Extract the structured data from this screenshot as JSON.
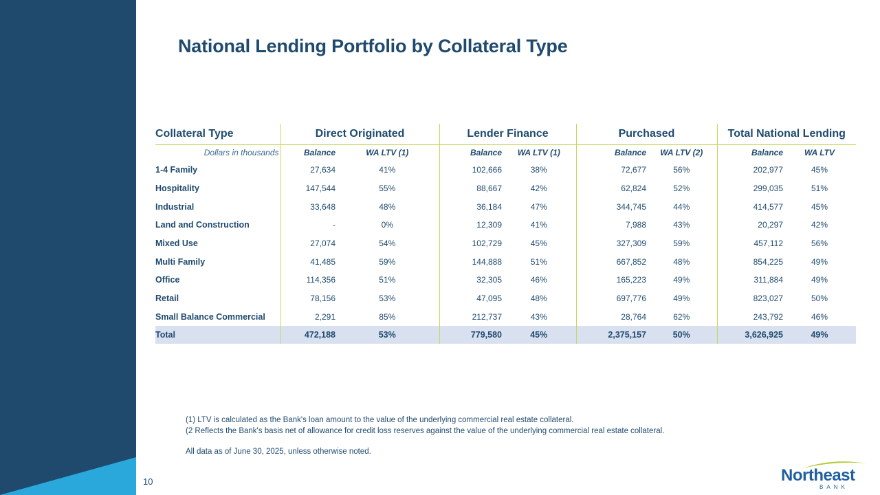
{
  "title": "National Lending Portfolio by Collateral Type",
  "table": {
    "groups": [
      "Collateral Type",
      "Direct Originated",
      "Lender Finance",
      "Purchased",
      "Total National Lending"
    ],
    "units_note": "Dollars in thousands",
    "subheaders": [
      "Balance",
      "WA LTV (1)",
      "Balance",
      "WA LTV (1)",
      "Balance",
      "WA LTV (2)",
      "Balance",
      "WA LTV"
    ],
    "rows": [
      {
        "label": "1-4 Family",
        "cells": [
          "27,634",
          "41%",
          "102,666",
          "38%",
          "72,677",
          "56%",
          "202,977",
          "45%"
        ]
      },
      {
        "label": "Hospitality",
        "cells": [
          "147,544",
          "55%",
          "88,667",
          "42%",
          "62,824",
          "52%",
          "299,035",
          "51%"
        ]
      },
      {
        "label": "Industrial",
        "cells": [
          "33,648",
          "48%",
          "36,184",
          "47%",
          "344,745",
          "44%",
          "414,577",
          "45%"
        ]
      },
      {
        "label": "Land and Construction",
        "cells": [
          "-",
          "0%",
          "12,309",
          "41%",
          "7,988",
          "43%",
          "20,297",
          "42%"
        ]
      },
      {
        "label": "Mixed Use",
        "cells": [
          "27,074",
          "54%",
          "102,729",
          "45%",
          "327,309",
          "59%",
          "457,112",
          "56%"
        ]
      },
      {
        "label": "Multi Family",
        "cells": [
          "41,485",
          "59%",
          "144,888",
          "51%",
          "667,852",
          "48%",
          "854,225",
          "49%"
        ]
      },
      {
        "label": "Office",
        "cells": [
          "114,356",
          "51%",
          "32,305",
          "46%",
          "165,223",
          "49%",
          "311,884",
          "49%"
        ]
      },
      {
        "label": "Retail",
        "cells": [
          "78,156",
          "53%",
          "47,095",
          "48%",
          "697,776",
          "49%",
          "823,027",
          "50%"
        ]
      },
      {
        "label": "Small Balance Commercial",
        "cells": [
          "2,291",
          "85%",
          "212,737",
          "43%",
          "28,764",
          "62%",
          "243,792",
          "46%"
        ]
      }
    ],
    "total": {
      "label": "Total",
      "cells": [
        "472,188",
        "53%",
        "779,580",
        "45%",
        "2,375,157",
        "50%",
        "3,626,925",
        "49%"
      ]
    }
  },
  "footnotes": {
    "note1": "(1) LTV is calculated as the Bank's loan amount to the value of the underlying commercial real estate collateral.",
    "note2": "(2 Reflects the Bank's basis net of allowance for credit loss reserves against the value of the underlying commercial real estate collateral.",
    "as_of": "All data as of June 30, 2025, unless otherwise noted."
  },
  "page_number": "10",
  "logo": {
    "word": "Northeast",
    "sub": "BANK"
  },
  "colors": {
    "navy": "#1f4a6e",
    "accent_cyan": "#2aa8dc",
    "rule_green": "#c8d65a",
    "total_fill": "#d9e1f0",
    "logo_green": "#b5c832"
  }
}
